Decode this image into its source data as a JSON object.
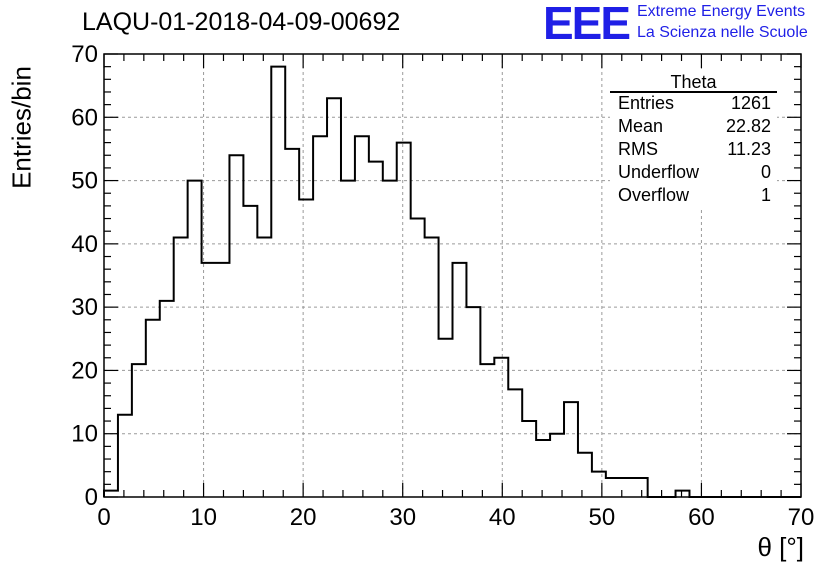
{
  "title": "LAQU-01-2018-04-09-00692",
  "logo": {
    "text": "EEE",
    "line1": "Extreme Energy Events",
    "line2": "La Scienza nelle Scuole",
    "color": "#1f1fe6"
  },
  "stats": {
    "title": "Theta",
    "rows": [
      {
        "label": "Entries",
        "value": "1261"
      },
      {
        "label": "Mean",
        "value": "22.82"
      },
      {
        "label": "RMS",
        "value": "11.23"
      },
      {
        "label": "Underflow",
        "value": "0"
      },
      {
        "label": "Overflow",
        "value": "1"
      }
    ]
  },
  "chart_data": {
    "type": "histogram",
    "title": "LAQU-01-2018-04-09-00692",
    "xlabel": "θ [°]",
    "ylabel": "Entries/bin",
    "xlim": [
      0,
      70
    ],
    "ylim": [
      0,
      70
    ],
    "bin_width": 1.4,
    "x_ticks": [
      0,
      10,
      20,
      30,
      40,
      50,
      60,
      70
    ],
    "y_ticks": [
      0,
      10,
      20,
      30,
      40,
      50,
      60,
      70
    ],
    "grid": true,
    "values": [
      1,
      13,
      21,
      28,
      31,
      41,
      50,
      37,
      37,
      54,
      46,
      41,
      68,
      55,
      47,
      57,
      63,
      50,
      57,
      53,
      50,
      56,
      44,
      41,
      25,
      37,
      30,
      21,
      22,
      17,
      12,
      9,
      10,
      15,
      7,
      4,
      3,
      3,
      3,
      0,
      0,
      1,
      0,
      0,
      0,
      0,
      0,
      0,
      0,
      0
    ],
    "line_color": "#000000"
  }
}
